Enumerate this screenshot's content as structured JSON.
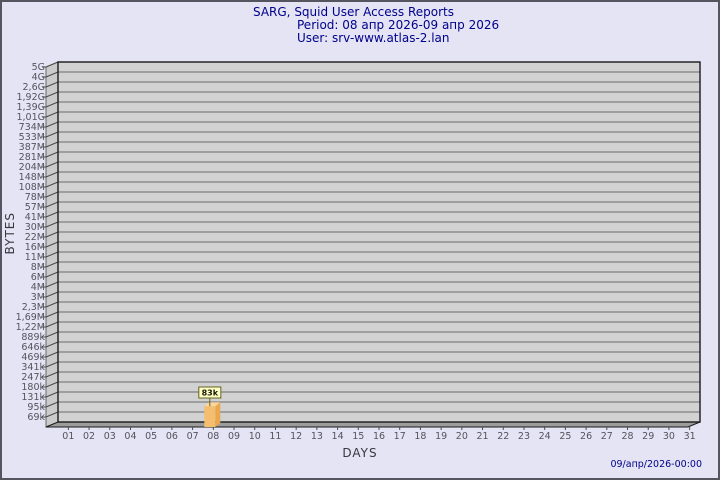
{
  "header": {
    "title": "SARG, Squid User Access Reports",
    "period": "Period: 08 апр 2026-09 апр 2026",
    "user": "User: srv-www.atlas-2.lan"
  },
  "footer": {
    "timestamp": "09/апр/2026-00:00"
  },
  "chart_data": {
    "type": "bar",
    "title": "SARG, Squid User Access Reports",
    "subtitle": [
      "Period: 08 апр 2026-09 апр 2026",
      "User: srv-www.atlas-2.lan"
    ],
    "xlabel": "DAYS",
    "ylabel": "BYTES",
    "y_scale": "log",
    "grid": true,
    "x_categories": [
      "01",
      "02",
      "03",
      "04",
      "05",
      "06",
      "07",
      "08",
      "09",
      "10",
      "11",
      "12",
      "13",
      "14",
      "15",
      "16",
      "17",
      "18",
      "19",
      "20",
      "21",
      "22",
      "23",
      "24",
      "25",
      "26",
      "27",
      "28",
      "29",
      "30",
      "31"
    ],
    "y_tick_labels_top_to_bottom": [
      "5G",
      "4G",
      "2,6G",
      "1,92G",
      "1,39G",
      "1,01G",
      "734M",
      "533M",
      "387M",
      "281M",
      "204M",
      "148M",
      "108M",
      "78M",
      "57M",
      "41M",
      "30M",
      "22M",
      "16M",
      "11M",
      "8M",
      "6M",
      "4M",
      "3M",
      "2,3M",
      "1,69M",
      "1,22M",
      "889k",
      "646k",
      "469k",
      "341k",
      "247k",
      "180k",
      "131k",
      "95k",
      "69k"
    ],
    "bars": [
      {
        "x": "08",
        "label": "83k",
        "value_bytes": 83000
      }
    ],
    "colors": {
      "background": "#e4e4f4",
      "outer_border": "#55555f",
      "plot_bg": "#d2d2d2",
      "grid_line": "#6a6a6a",
      "wall_fill": "#cbcbcb",
      "wall_line": "#4a4a4a",
      "floor_fill": "#9c9c9c",
      "plot_border": "#1a1a1a",
      "bar_front": "#f5be6e",
      "bar_side": "#e9a84f",
      "bar_top": "#fbd79c",
      "tooltip_bg": "#ffffc8",
      "tooltip_border": "#63631a",
      "tick_text": "#54545e",
      "title_text": "#00008b"
    }
  }
}
